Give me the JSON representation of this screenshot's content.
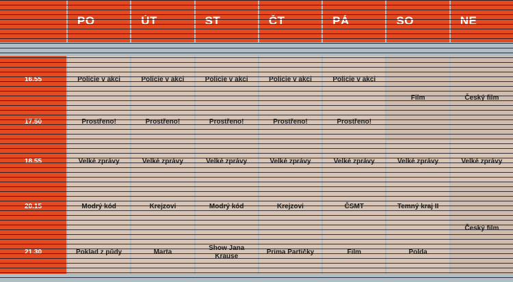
{
  "days": [
    "PO",
    "ÚT",
    "ST",
    "ČT",
    "PÁ",
    "SO",
    "NE"
  ],
  "times": [
    "16.55",
    "17.50",
    "18.55",
    "20.15",
    "21.30"
  ],
  "programs": {
    "row1": [
      "Policie v akci",
      "Policie v akci",
      "Policie v akci",
      "Policie v akci",
      "Policie v akci"
    ],
    "row2": [
      "Prostřeno!",
      "Prostřeno!",
      "Prostřeno!",
      "Prostřeno!",
      "Prostřeno!"
    ],
    "weekend_afternoon": {
      "sat": "Film",
      "sun": "Český film"
    },
    "row3": [
      "Velké zprávy",
      "Velké zprávy",
      "Velké zprávy",
      "Velké zprávy",
      "Velké zprávy",
      "Velké zprávy",
      "Velké zprávy"
    ],
    "row4": [
      "Modrý kód",
      "Krejzovi",
      "Modrý kód",
      "Krejzovi",
      "ČSMT",
      "Temný kraj II"
    ],
    "row5": [
      "Poklad z půdy",
      "Marta",
      "Show Jana Krause",
      "Prima Partičky",
      "Film",
      "Polda"
    ],
    "sun_evening": "Český film"
  },
  "colors": {
    "header": "#e4491f",
    "cell": "#d7c4b5",
    "background": "#aebdc6"
  }
}
